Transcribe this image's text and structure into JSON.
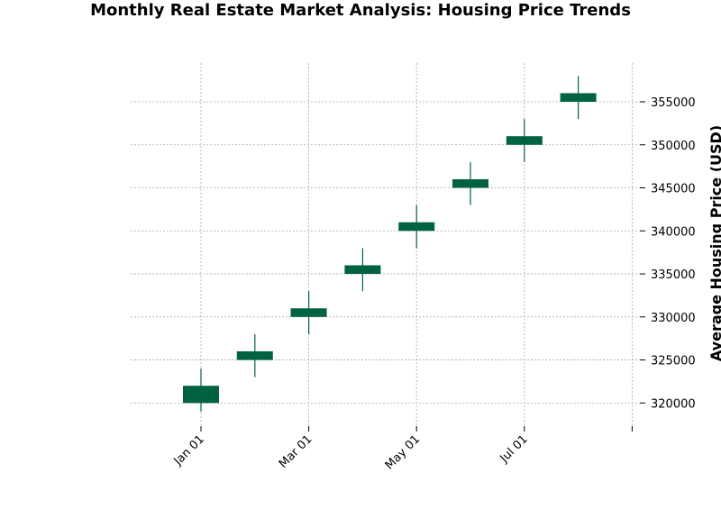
{
  "chart_data": {
    "type": "candlestick",
    "title": "Monthly Real Estate Market Analysis: Housing Price Trends",
    "xlabel": "",
    "ylabel": "Average Housing Price (USD)",
    "ylim": [
      317000,
      359500
    ],
    "y_ticks": [
      320000,
      325000,
      330000,
      335000,
      340000,
      345000,
      350000,
      355000
    ],
    "x_ticks": [
      {
        "label": "Jan 01",
        "index": 0
      },
      {
        "label": "Mar 01",
        "index": 2
      },
      {
        "label": "May 01",
        "index": 4
      },
      {
        "label": "Jul 01",
        "index": 6
      },
      {
        "label": "",
        "index": 8
      }
    ],
    "grid": true,
    "up_color": "#006340",
    "down_color": "#c0392b",
    "candles": [
      {
        "date": "2023-01",
        "open": 320000,
        "high": 324000,
        "low": 319000,
        "close": 322000
      },
      {
        "date": "2023-02",
        "open": 325000,
        "high": 328000,
        "low": 323000,
        "close": 326000
      },
      {
        "date": "2023-03",
        "open": 330000,
        "high": 333000,
        "low": 328000,
        "close": 331000
      },
      {
        "date": "2023-04",
        "open": 335000,
        "high": 338000,
        "low": 333000,
        "close": 336000
      },
      {
        "date": "2023-05",
        "open": 340000,
        "high": 343000,
        "low": 338000,
        "close": 341000
      },
      {
        "date": "2023-06",
        "open": 345000,
        "high": 348000,
        "low": 343000,
        "close": 346000
      },
      {
        "date": "2023-07",
        "open": 350000,
        "high": 353000,
        "low": 348000,
        "close": 351000
      },
      {
        "date": "2023-08",
        "open": 355000,
        "high": 358000,
        "low": 353000,
        "close": 356000
      }
    ]
  }
}
